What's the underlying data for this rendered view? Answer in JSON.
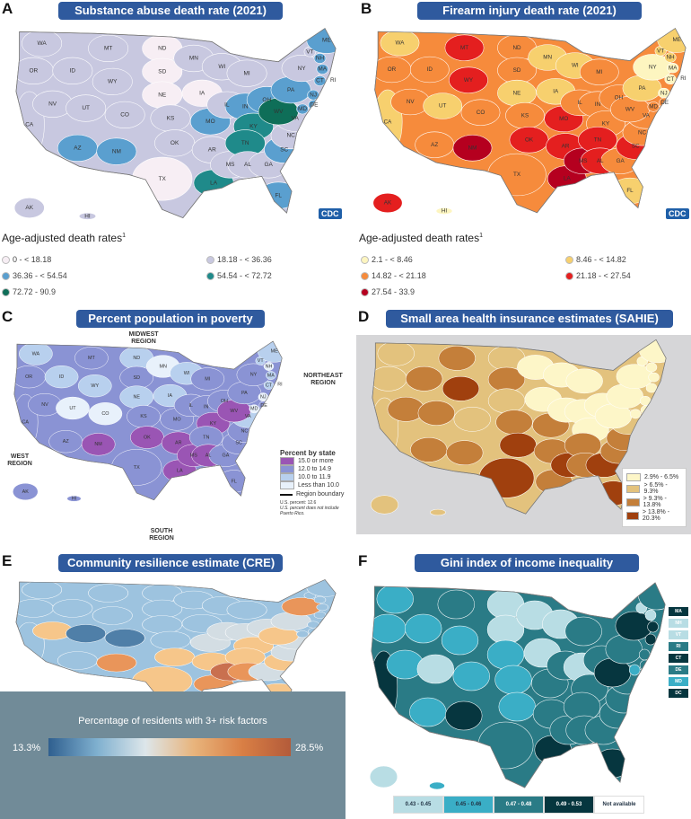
{
  "states": [
    "WA",
    "OR",
    "CA",
    "NV",
    "ID",
    "MT",
    "WY",
    "UT",
    "AZ",
    "CO",
    "NM",
    "ND",
    "SD",
    "NE",
    "KS",
    "OK",
    "TX",
    "MN",
    "IA",
    "MO",
    "AR",
    "LA",
    "WI",
    "IL",
    "MS",
    "MI",
    "IN",
    "KY",
    "TN",
    "AL",
    "OH",
    "GA",
    "FL",
    "SC",
    "NC",
    "VA",
    "WV",
    "PA",
    "NY",
    "VT",
    "NH",
    "ME",
    "MA",
    "RI",
    "CT",
    "NJ",
    "DE",
    "MD",
    "AK",
    "HI"
  ],
  "panels": {
    "A": {
      "letter": "A",
      "title": "Substance abuse death rate (2021)",
      "legend_title": "Age-adjusted death rates",
      "legend_sup": "1",
      "legend": [
        "0 - < 18.18",
        "18.18 - < 36.36",
        "36.36 - < 54.54",
        "54.54 - < 72.72",
        "72.72 - 90.9"
      ],
      "palette": [
        "#f7eef4",
        "#c8c8e0",
        "#5a9fcf",
        "#1f8a8a",
        "#0e6e58"
      ],
      "default": 1,
      "fills": {
        "ND": 0,
        "SD": 0,
        "NE": 0,
        "IA": 0,
        "TX": 0,
        "AZ": 2,
        "NM": 2,
        "MO": 2,
        "IN": 2,
        "OH": 2,
        "PA": 2,
        "SC": 2,
        "FL": 2,
        "ME": 2,
        "NH": 2,
        "MA": 2,
        "RI": 2,
        "CT": 2,
        "NJ": 2,
        "DE": 2,
        "MD": 2,
        "KY": 3,
        "TN": 3,
        "LA": 3,
        "WV": 4
      },
      "badge": "CDC"
    },
    "B": {
      "letter": "B",
      "title": "Firearm injury death rate (2021)",
      "legend_title": "Age-adjusted death rates",
      "legend_sup": "1",
      "legend": [
        "2.1 - < 8.46",
        "8.46 - < 14.82",
        "14.82 - < 21.18",
        "21.18 - < 27.54",
        "27.54 - 33.9"
      ],
      "palette": [
        "#fdf5c0",
        "#f7d06e",
        "#f68b3c",
        "#e41f1f",
        "#b5001f"
      ],
      "default": 2,
      "fills": {
        "WA": 1,
        "CA": 1,
        "UT": 1,
        "MN": 1,
        "NE": 1,
        "IA": 1,
        "WI": 1,
        "PA": 1,
        "ME": 1,
        "FL": 1,
        "VT": 1,
        "NH": 1,
        "NY": 0,
        "NJ": 0,
        "MA": 0,
        "RI": 0,
        "CT": 0,
        "HI": 0,
        "MT": 3,
        "WY": 3,
        "OK": 3,
        "MO": 3,
        "AR": 3,
        "TN": 3,
        "AL": 3,
        "SC": 3,
        "AK": 3,
        "NM": 4,
        "LA": 4,
        "MS": 4
      },
      "badge": "CDC"
    },
    "C": {
      "letter": "C",
      "title": "Percent population in poverty",
      "regions": [
        "MIDWEST REGION",
        "NORTHEAST REGION",
        "WEST REGION",
        "SOUTH REGION"
      ],
      "legend_title": "Percent by state",
      "legend": [
        "Less than 10.0",
        "10.0 to 11.9",
        "12.0 to 14.9",
        "15.0 or more"
      ],
      "boundary": "Region boundary",
      "us_percent": "U.S. percent: 12.6",
      "note": "U.S. percent does not include Puerto Rico.",
      "palette": [
        "#e8f1fb",
        "#b8d0ee",
        "#8a93d4",
        "#9a55b4"
      ],
      "default": 2,
      "fills": {
        "UT": 0,
        "CO": 0,
        "MN": 0,
        "NH": 0,
        "NJ": 0,
        "MD": 0,
        "VT": 1,
        "WA": 1,
        "ID": 1,
        "WY": 1,
        "ND": 1,
        "NE": 1,
        "WI": 1,
        "IA": 1,
        "ME": 1,
        "MA": 1,
        "CT": 1,
        "VA": 1,
        "NM": 3,
        "LA": 3,
        "MS": 3,
        "AR": 3,
        "KY": 3,
        "WV": 3,
        "AL": 3,
        "OK": 3
      }
    },
    "D": {
      "letter": "D",
      "title": "Small area health insurance estimates (SAHIE)",
      "legend": [
        "2.9% - 6.5%",
        "> 6.5% - 9.3%",
        "> 9.3% - 13.8%",
        "> 13.8% - 20.3%"
      ],
      "palette": [
        "#fdf6c8",
        "#e3c27d",
        "#c47f3a",
        "#a0400e"
      ],
      "default": 1,
      "fills": {
        "MN": 0,
        "WI": 0,
        "IA": 0,
        "MI": 0,
        "IL": 0,
        "OH": 0,
        "PA": 0,
        "NY": 0,
        "ME": 0,
        "VT": 0,
        "NH": 0,
        "MA": 0,
        "RI": 0,
        "CT": 0,
        "NJ": 0,
        "KY": 0,
        "IN": 0,
        "WV": 0,
        "MD": 0,
        "DE": 0,
        "MT": 2,
        "ID": 2,
        "NV": 2,
        "UT": 2,
        "AZ": 2,
        "NM": 2,
        "SD": 2,
        "KS": 2,
        "NC": 2,
        "SC": 2,
        "TN": 2,
        "AR": 2,
        "MO": 2,
        "LA": 2,
        "AL": 2,
        "WY": 3,
        "TX": 3,
        "OK": 3,
        "GA": 3,
        "FL": 3,
        "MS": 3
      }
    },
    "E": {
      "letter": "E",
      "title": "Community resilience estimate (CRE)",
      "scale_title": "Percentage of residents with 3+ risk factors",
      "scale_min": "13.3%",
      "scale_max": "28.5%",
      "palette": [
        "#4f7fa8",
        "#9dc3df",
        "#d3dde3",
        "#f6c68a",
        "#e9955a",
        "#c9704f"
      ],
      "default": 1,
      "fills": {
        "UT": 0,
        "CO": 0,
        "NV": 3,
        "NM": 4,
        "TX": 3,
        "OK": 3,
        "AR": 3,
        "LA": 4,
        "MS": 5,
        "AL": 4,
        "GA": 2,
        "FL": 3,
        "TN": 3,
        "KY": 3,
        "SC": 3,
        "NC": 2,
        "WV": 3,
        "NY": 4,
        "IL": 2,
        "IN": 2,
        "OH": 2,
        "PA": 2,
        "VA": 2,
        "MO": 2
      }
    },
    "F": {
      "letter": "F",
      "title": "Gini index of income inequality",
      "legend": [
        "0.43 - 0.45",
        "0.45 - 0.46",
        "0.47 - 0.48",
        "0.49 - 0.53",
        "Not available"
      ],
      "side_labels": [
        "MA",
        "NH",
        "VT",
        "RI",
        "CT",
        "DE",
        "MD",
        "DC"
      ],
      "palette": [
        "#b8dde4",
        "#3aaec6",
        "#2a7b86",
        "#06363f",
        "#ffffff"
      ],
      "default": 2,
      "fills": {
        "ND": 0,
        "SD": 0,
        "MN": 0,
        "WI": 0,
        "IA": 0,
        "UT": 0,
        "IN": 0,
        "NH": 0,
        "VT": 0,
        "AK": 0,
        "WA": 1,
        "OR": 1,
        "ID": 1,
        "WY": 1,
        "CO": 1,
        "NE": 1,
        "KS": 1,
        "OK": 1,
        "AZ": 1,
        "NV": 1,
        "HI": 1,
        "MD": 1,
        "CA": 3,
        "NY": 3,
        "NM": 3,
        "LA": 3,
        "FL": 3,
        "WV": 3,
        "CT": 3,
        "MA": 3
      }
    }
  }
}
